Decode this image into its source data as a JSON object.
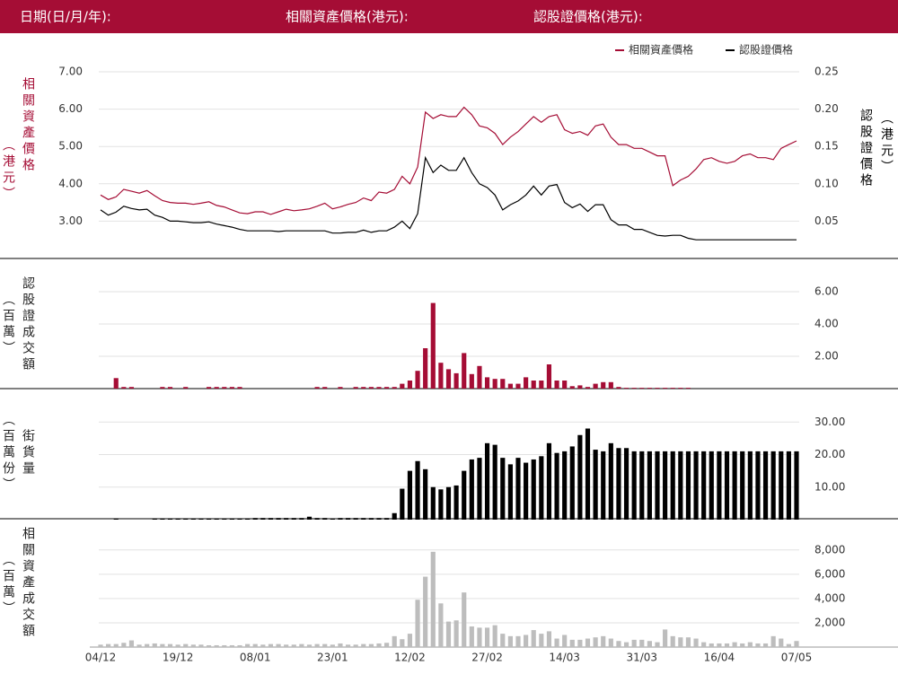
{
  "header": {
    "labels": [
      "日期(日/月/年):",
      "相關資產價格(港元):",
      "認股證價格(港元):"
    ]
  },
  "chart_data": [
    {
      "type": "line",
      "legend": "top-right",
      "grid": true,
      "y_label": "相關資產價格",
      "y_unit": "（港元）",
      "y2_label": "認股證價格",
      "y2_unit": "（港元）",
      "ylim": [
        2,
        7
      ],
      "yticks": [
        {
          "value": 3,
          "label": "3.00"
        },
        {
          "value": 4,
          "label": "4.00"
        },
        {
          "value": 5,
          "label": "5.00"
        },
        {
          "value": 6,
          "label": "6.00"
        },
        {
          "value": 7,
          "label": "7.00"
        }
      ],
      "y2lim": [
        0,
        0.25
      ],
      "y2ticks": [
        0.05,
        {
          "value": 0.1,
          "label": "0.10"
        },
        0.15,
        {
          "value": 0.2,
          "label": "0.20"
        },
        0.25
      ],
      "series": [
        {
          "name": "相關資產價格",
          "color": "#a50d35",
          "values": [
            3.7,
            3.58,
            3.65,
            3.85,
            3.8,
            3.75,
            3.82,
            3.68,
            3.55,
            3.5,
            3.48,
            3.48,
            3.45,
            3.48,
            3.52,
            3.42,
            3.38,
            3.3,
            3.22,
            3.2,
            3.25,
            3.25,
            3.18,
            3.25,
            3.32,
            3.28,
            3.3,
            3.33,
            3.4,
            3.48,
            3.33,
            3.38,
            3.45,
            3.5,
            3.62,
            3.55,
            3.78,
            3.75,
            3.85,
            4.2,
            4.0,
            4.45,
            5.92,
            5.75,
            5.85,
            5.8,
            5.8,
            6.05,
            5.85,
            5.55,
            5.5,
            5.35,
            5.05,
            5.25,
            5.4,
            5.6,
            5.8,
            5.65,
            5.8,
            5.85,
            5.45,
            5.35,
            5.4,
            5.3,
            5.55,
            5.6,
            5.25,
            5.05,
            5.05,
            4.95,
            4.95,
            4.85,
            4.75,
            4.75,
            3.95,
            4.1,
            4.2,
            4.4,
            4.65,
            4.7,
            4.6,
            4.55,
            4.6,
            4.75,
            4.8,
            4.7,
            4.7,
            4.65,
            4.95,
            5.05,
            5.15
          ]
        },
        {
          "name": "認股證價格",
          "color": "#000000",
          "axis": "y2",
          "values": [
            0.065,
            0.058,
            0.062,
            0.07,
            0.067,
            0.065,
            0.066,
            0.058,
            0.055,
            0.05,
            0.05,
            0.049,
            0.048,
            0.048,
            0.049,
            0.046,
            0.044,
            0.042,
            0.039,
            0.037,
            0.037,
            0.037,
            0.037,
            0.036,
            0.037,
            0.037,
            0.037,
            0.037,
            0.037,
            0.037,
            0.034,
            0.034,
            0.035,
            0.035,
            0.038,
            0.035,
            0.037,
            0.037,
            0.042,
            0.05,
            0.04,
            0.06,
            0.135,
            0.115,
            0.125,
            0.118,
            0.118,
            0.135,
            0.115,
            0.1,
            0.095,
            0.085,
            0.065,
            0.072,
            0.077,
            0.085,
            0.097,
            0.085,
            0.097,
            0.099,
            0.075,
            0.068,
            0.073,
            0.063,
            0.072,
            0.072,
            0.052,
            0.045,
            0.045,
            0.039,
            0.039,
            0.035,
            0.031,
            0.03,
            0.031,
            0.031,
            0.027,
            0.025,
            0.025,
            0.025,
            0.025,
            0.025,
            0.025,
            0.025,
            0.025,
            0.025,
            0.025,
            0.025,
            0.025,
            0.025,
            0.025
          ]
        }
      ]
    },
    {
      "type": "bar",
      "grid": true,
      "y_label": "認股證成交額",
      "y_unit": "（百萬）",
      "color": "#a50d35",
      "ylim": [
        0,
        8
      ],
      "yticks": [
        {
          "value": 2,
          "label": "2.00"
        },
        {
          "value": 4,
          "label": "4.00"
        },
        {
          "value": 6,
          "label": "6.00"
        }
      ],
      "values": [
        0,
        0,
        0.65,
        0.1,
        0.1,
        0,
        0,
        0,
        0.1,
        0.1,
        0,
        0.1,
        0,
        0,
        0.1,
        0.1,
        0.1,
        0.1,
        0.1,
        0,
        0,
        0,
        0,
        0,
        0,
        0,
        0,
        0,
        0.1,
        0.1,
        0,
        0.1,
        0,
        0.1,
        0.1,
        0.1,
        0.1,
        0.1,
        0.1,
        0.3,
        0.5,
        1.1,
        2.5,
        5.3,
        1.6,
        1.2,
        0.95,
        2.2,
        0.9,
        1.4,
        0.7,
        0.6,
        0.6,
        0.3,
        0.3,
        0.7,
        0.5,
        0.5,
        1.5,
        0.5,
        0.5,
        0.15,
        0.2,
        0.1,
        0.3,
        0.4,
        0.4,
        0.1,
        0.05,
        0.05,
        0.05,
        0.05,
        0.05,
        0.05,
        0.05,
        0.05,
        0.05,
        0,
        0,
        0,
        0,
        0,
        0,
        0,
        0,
        0,
        0,
        0,
        0,
        0,
        0
      ]
    },
    {
      "type": "bar",
      "grid": true,
      "y_label": "街貨量",
      "y_unit": "（百萬份）",
      "color": "#000000",
      "ylim": [
        0,
        40
      ],
      "yticks": [
        {
          "value": 10,
          "label": "10.00"
        },
        {
          "value": 20,
          "label": "20.00"
        },
        {
          "value": 30,
          "label": "30.00"
        }
      ],
      "values": [
        0,
        0,
        0.3,
        0,
        0,
        0,
        0,
        0.3,
        0.3,
        0.3,
        0.3,
        0.3,
        0.3,
        0.3,
        0.3,
        0.3,
        0.3,
        0.3,
        0.4,
        0.4,
        0.5,
        0.5,
        0.5,
        0.5,
        0.5,
        0.5,
        0.5,
        0.9,
        0.5,
        0.5,
        0.3,
        0.5,
        0.5,
        0.5,
        0.5,
        0.5,
        0.5,
        0.5,
        2.0,
        9.5,
        15,
        18,
        15.5,
        10,
        9.3,
        10,
        10.5,
        15,
        18.5,
        19,
        23.5,
        23,
        19,
        17,
        19,
        17.5,
        18.5,
        19.5,
        23.5,
        20.5,
        21,
        22.5,
        26,
        28,
        21.5,
        21,
        23.5,
        22,
        22,
        21,
        21,
        21,
        21,
        21,
        21,
        21,
        21,
        21,
        21,
        21,
        21,
        21,
        21,
        21,
        21,
        21,
        21,
        21,
        21,
        21,
        21
      ]
    },
    {
      "type": "bar",
      "grid": true,
      "y_label": "相關資產成交額",
      "y_unit": "（百萬）",
      "color": "#bdbdbd",
      "ylim": [
        0,
        10500
      ],
      "yticks": [
        {
          "value": 2000,
          "label": "2,000"
        },
        {
          "value": 4000,
          "label": "4,000"
        },
        {
          "value": 6000,
          "label": "6,000"
        },
        {
          "value": 8000,
          "label": "8,000"
        }
      ],
      "categories": [
        "04/12",
        null,
        null,
        null,
        null,
        null,
        null,
        null,
        null,
        null,
        "19/12",
        null,
        null,
        null,
        null,
        null,
        null,
        null,
        null,
        null,
        "08/01",
        null,
        null,
        null,
        null,
        null,
        null,
        null,
        null,
        null,
        "23/01",
        null,
        null,
        null,
        null,
        null,
        null,
        null,
        null,
        null,
        "12/02",
        null,
        null,
        null,
        null,
        null,
        null,
        null,
        null,
        null,
        "27/02",
        null,
        null,
        null,
        null,
        null,
        null,
        null,
        null,
        null,
        "14/03",
        null,
        null,
        null,
        null,
        null,
        null,
        null,
        null,
        null,
        "31/03",
        null,
        null,
        null,
        null,
        null,
        null,
        null,
        null,
        null,
        "16/04",
        null,
        null,
        null,
        null,
        null,
        null,
        null,
        null,
        null,
        "07/05"
      ],
      "values": [
        200,
        250,
        250,
        350,
        550,
        200,
        250,
        300,
        250,
        250,
        200,
        250,
        200,
        200,
        150,
        150,
        150,
        150,
        150,
        250,
        250,
        200,
        250,
        250,
        200,
        200,
        250,
        200,
        250,
        250,
        200,
        300,
        200,
        200,
        250,
        250,
        300,
        350,
        900,
        650,
        1100,
        3900,
        5800,
        7850,
        3600,
        2100,
        2200,
        4500,
        1700,
        1600,
        1600,
        1800,
        1100,
        900,
        900,
        1000,
        1400,
        1100,
        1300,
        700,
        1000,
        600,
        600,
        700,
        800,
        900,
        700,
        500,
        400,
        600,
        600,
        500,
        400,
        1450,
        900,
        800,
        800,
        700,
        400,
        300,
        300,
        300,
        400,
        300,
        400,
        300,
        300,
        900,
        700,
        250,
        500
      ]
    }
  ]
}
